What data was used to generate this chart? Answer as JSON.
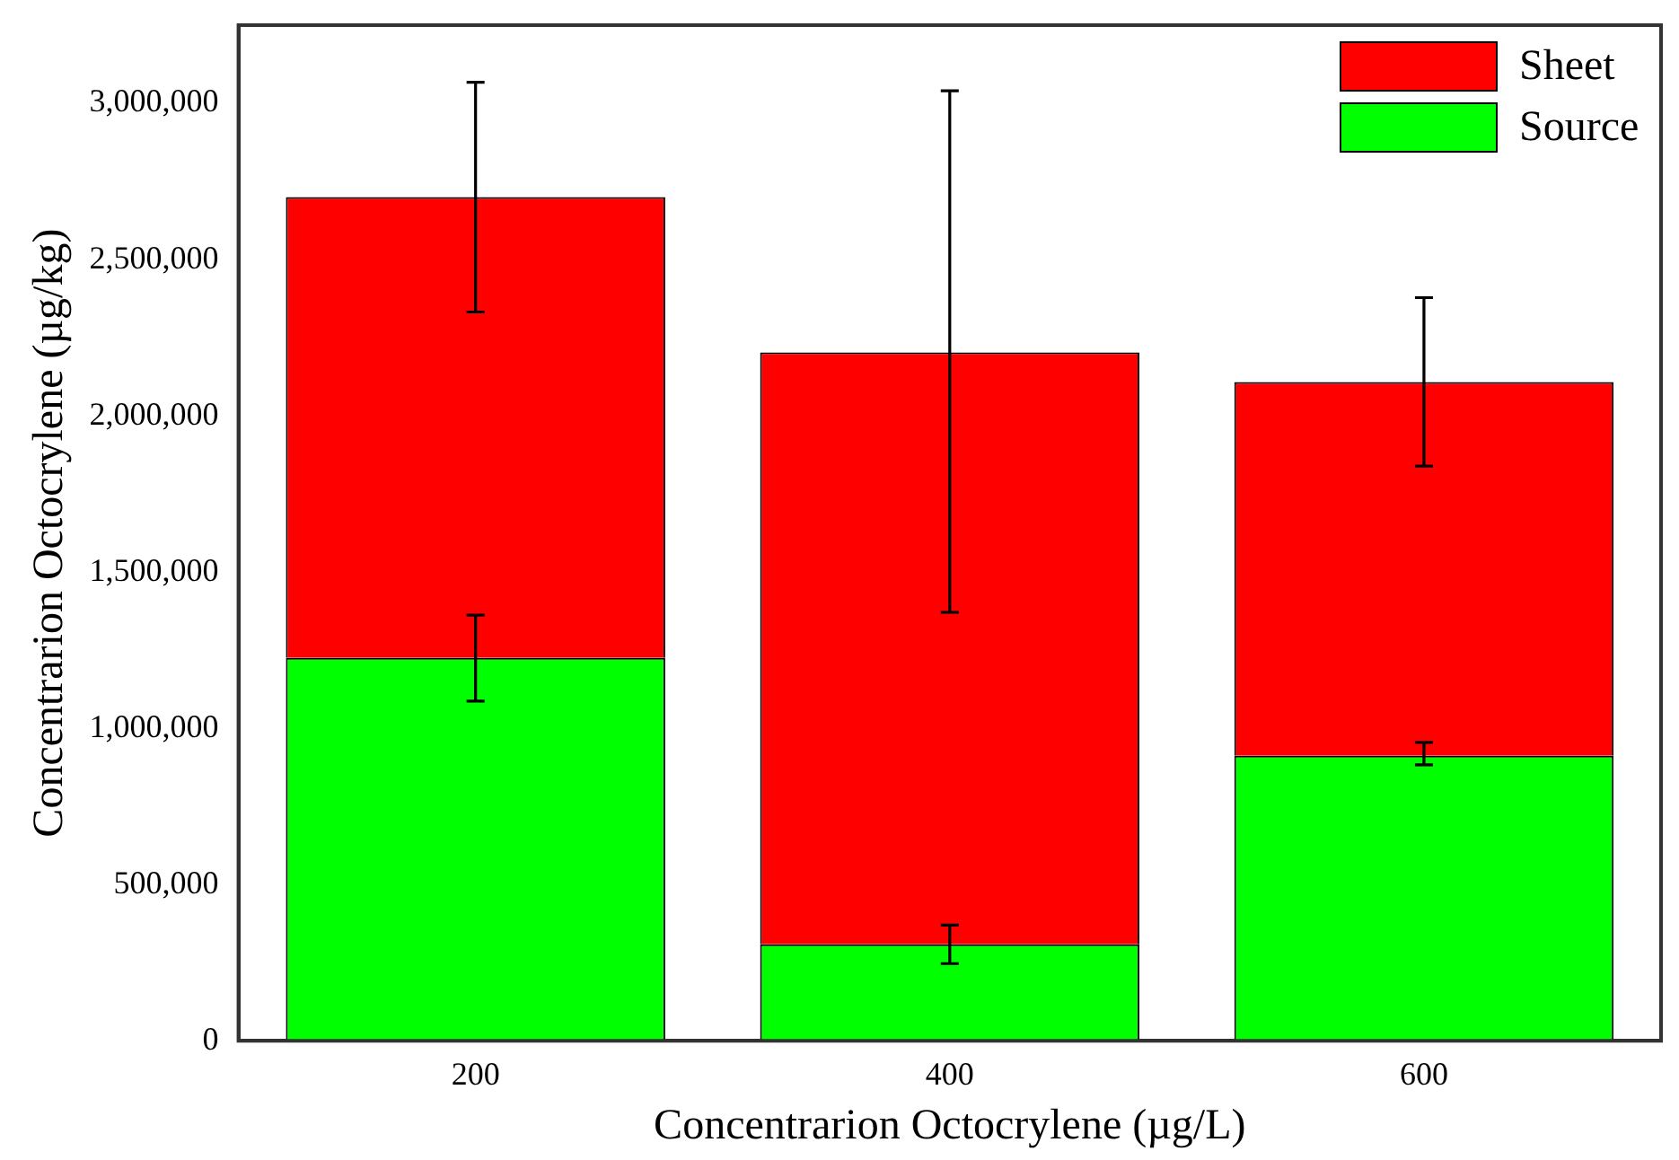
{
  "chart_data": {
    "type": "bar",
    "stacked": true,
    "xlabel": "Concentrarion Octocrylene (µg/L)",
    "ylabel": "Concentrarion Octocrylene (µg/kg)",
    "categories": [
      "200",
      "400",
      "600"
    ],
    "series": [
      {
        "name": "Source",
        "color": "#00ff00",
        "values": [
          1225000,
          309000,
          912000
        ],
        "errors": [
          [
            1087000,
            1362000
          ],
          [
            247000,
            370000
          ],
          [
            883000,
            955000
          ]
        ]
      },
      {
        "name": "Sheet",
        "color": "#ff0000",
        "values": [
          1475000,
          1894000,
          1196000
        ],
        "errors": [
          [
            2332000,
            3067000
          ],
          [
            1371000,
            3040000
          ],
          [
            1839000,
            2378000
          ]
        ]
      }
    ],
    "ylim": [
      0,
      3250000
    ],
    "yticks": [
      {
        "value": 0,
        "label": "0"
      },
      {
        "value": 500000,
        "label": "500,000"
      },
      {
        "value": 1000000,
        "label": "1,000,000"
      },
      {
        "value": 1500000,
        "label": "1,500,000"
      },
      {
        "value": 2000000,
        "label": "2,000,000"
      },
      {
        "value": 2500000,
        "label": "2,500,000"
      },
      {
        "value": 3000000,
        "label": "3,000,000"
      }
    ],
    "grid": false,
    "legend": "top right"
  }
}
